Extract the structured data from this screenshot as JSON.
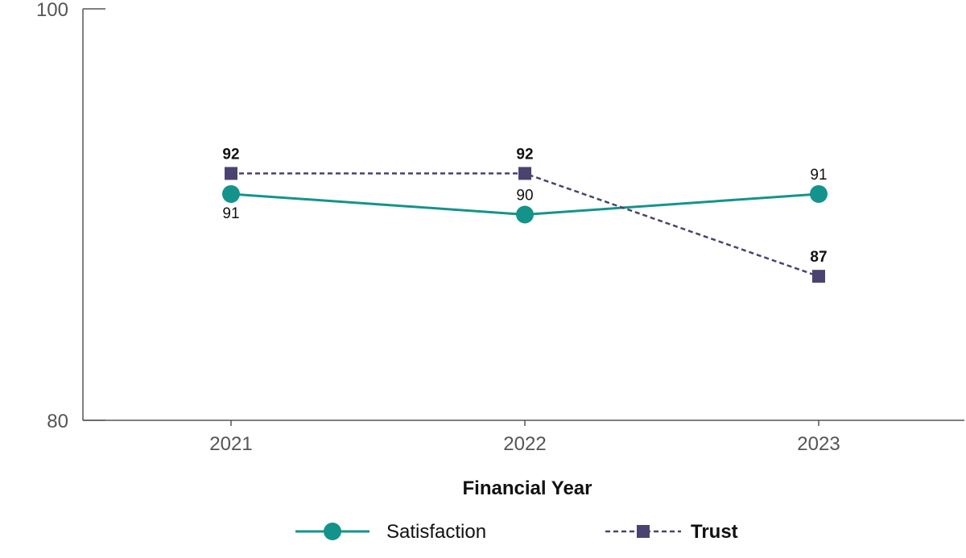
{
  "chart_data": {
    "type": "line",
    "title": "",
    "xlabel": "Financial Year",
    "ylabel": "",
    "categories": [
      "2021",
      "2022",
      "2023"
    ],
    "ylim": [
      80,
      100
    ],
    "yticks": [
      "100",
      "80"
    ],
    "grid": false,
    "legend_position": "bottom-center",
    "series": [
      {
        "name": "Satisfaction",
        "values": [
          91,
          90,
          91
        ],
        "labels": [
          "91",
          "90",
          "91"
        ],
        "label_positions": [
          "below",
          "above",
          "above"
        ],
        "label_bold": false,
        "color": "#14938d",
        "line_style": "solid",
        "marker": "circle"
      },
      {
        "name": "Trust",
        "values": [
          92,
          92,
          87
        ],
        "labels": [
          "92",
          "92",
          "87"
        ],
        "label_positions": [
          "above",
          "above",
          "above"
        ],
        "label_bold": true,
        "color": "#4a4370",
        "line_style": "dashed",
        "marker": "square"
      }
    ]
  },
  "colors": {
    "axis": "#555555"
  }
}
